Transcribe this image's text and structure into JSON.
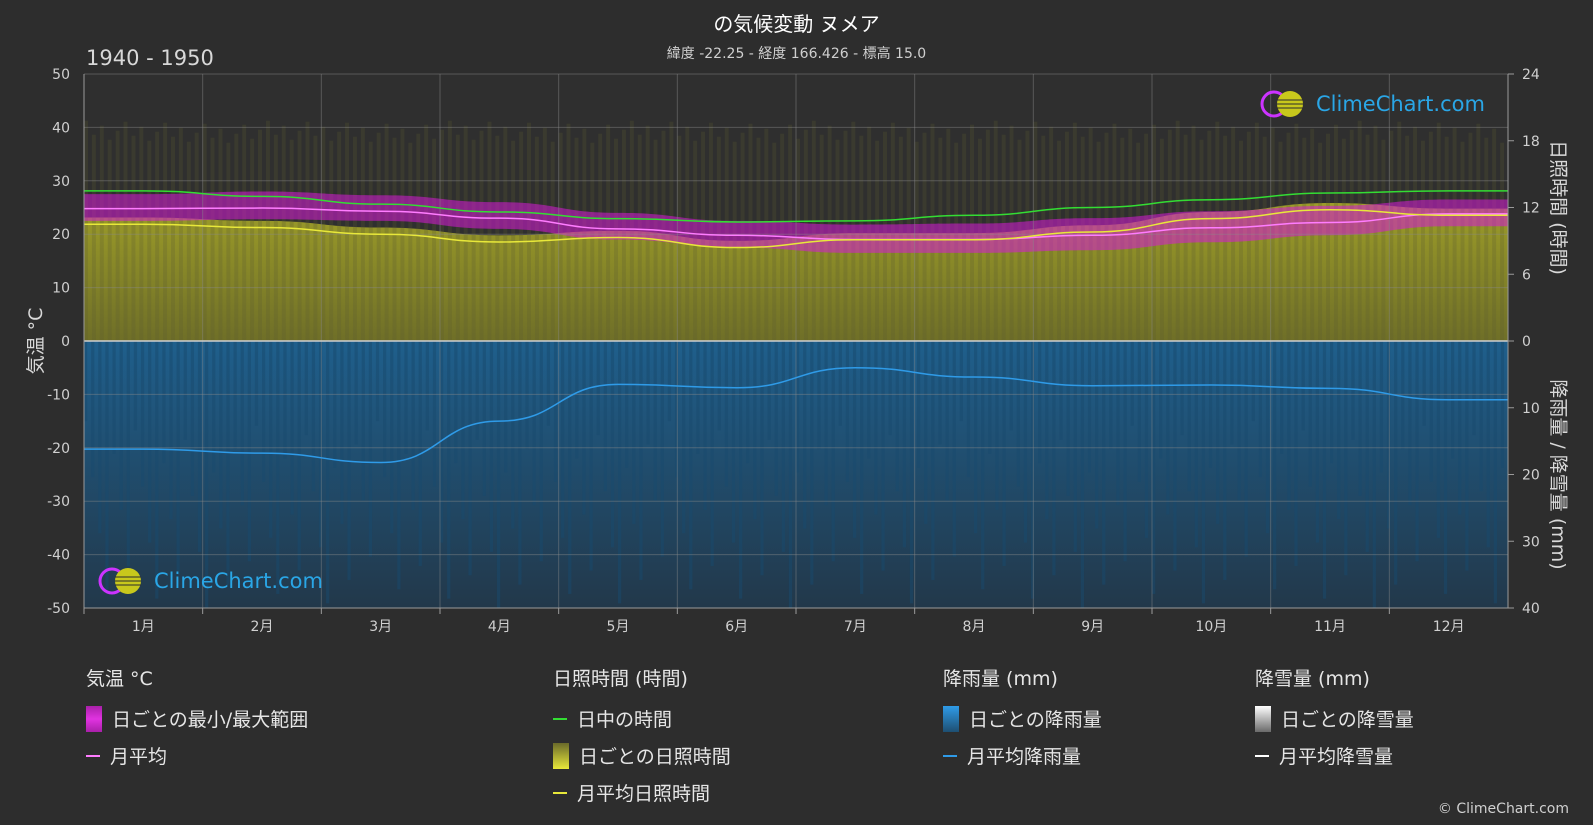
{
  "header": {
    "title": "の気候変動 ヌメア",
    "subtitle": "緯度 -22.25 - 経度 166.426 - 標高 15.0",
    "period": "1940 - 1950"
  },
  "brand": {
    "logo_text": "ClimeChart.com",
    "copyright": "© ClimeChart.com"
  },
  "axes": {
    "left_label": "気温 °C",
    "right_top_label": "日照時間 (時間)",
    "right_bottom_label": "降雨量 / 降雪量 (mm)"
  },
  "legend": {
    "temp": {
      "heading": "気温 °C",
      "range": "日ごとの最小/最大範囲",
      "mean": "月平均"
    },
    "sun": {
      "heading": "日照時間 (時間)",
      "daylight": "日中の時間",
      "daily": "日ごとの日照時間",
      "mean": "月平均日照時間"
    },
    "rain": {
      "heading": "降雨量 (mm)",
      "daily": "日ごとの降雨量",
      "mean": "月平均降雨量"
    },
    "snow": {
      "heading": "降雪量 (mm)",
      "daily": "日ごとの降雪量",
      "mean": "月平均降雪量"
    }
  },
  "colors": {
    "background": "#2d2d2d",
    "temp_range": "#d61ad6",
    "temp_mean": "#ff7cff",
    "daylight": "#33dd33",
    "sunshine_fill": "#a5a520",
    "sunshine_mean": "#e8e83a",
    "rain": "#1e6a9e",
    "rain_mean": "#2f9be8",
    "snow_mean": "#ffffff"
  },
  "chart_data": {
    "type": "line",
    "categories": [
      "1月",
      "2月",
      "3月",
      "4月",
      "5月",
      "6月",
      "7月",
      "8月",
      "9月",
      "10月",
      "11月",
      "12月"
    ],
    "left_axis": {
      "ylim": [
        -50,
        50
      ],
      "ticks": [
        50,
        40,
        30,
        20,
        10,
        0,
        -10,
        -20,
        -30,
        -40,
        -50
      ]
    },
    "right_top_axis": {
      "ylim": [
        0,
        24
      ],
      "ticks": [
        24,
        18,
        12,
        6,
        0
      ]
    },
    "right_bottom_axis": {
      "ylim": [
        0,
        40
      ],
      "ticks": [
        0,
        10,
        20,
        30,
        40
      ]
    },
    "series": [
      {
        "name": "日中の時間",
        "unit": "hours",
        "values": [
          13.5,
          13.0,
          12.3,
          11.6,
          11.0,
          10.7,
          10.8,
          11.3,
          12.0,
          12.7,
          13.3,
          13.5
        ]
      },
      {
        "name": "月平均",
        "unit": "°C",
        "values": [
          24.8,
          24.9,
          24.3,
          23.0,
          21.0,
          19.8,
          19.0,
          19.0,
          19.8,
          21.2,
          22.2,
          23.8
        ]
      },
      {
        "name": "日ごとの最小/最大範囲",
        "unit": "°C",
        "min": [
          22.5,
          22.8,
          22.5,
          21.0,
          19.0,
          17.5,
          16.5,
          16.5,
          17.0,
          18.5,
          19.8,
          21.5
        ],
        "max": [
          27.5,
          28.0,
          27.3,
          26.0,
          24.0,
          22.5,
          21.8,
          22.0,
          23.0,
          24.3,
          25.3,
          26.5
        ]
      },
      {
        "name": "月平均日照時間",
        "unit": "hours",
        "values": [
          10.5,
          10.2,
          9.6,
          8.9,
          9.3,
          8.4,
          9.1,
          9.1,
          9.8,
          11.0,
          11.8,
          11.3
        ]
      },
      {
        "name": "月平均降雨量",
        "unit": "mm",
        "values": [
          16.2,
          16.8,
          18.2,
          12.0,
          6.5,
          7.0,
          4.0,
          5.4,
          6.7,
          6.6,
          7.1,
          8.8
        ]
      },
      {
        "name": "月平均降雪量",
        "unit": "mm",
        "values": [
          0,
          0,
          0,
          0,
          0,
          0,
          0,
          0,
          0,
          0,
          0,
          0
        ]
      }
    ]
  }
}
